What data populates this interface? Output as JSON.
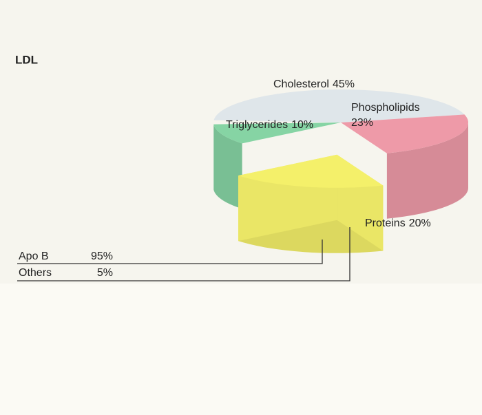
{
  "chart_data": [
    {
      "type": "pie",
      "title": "LDL",
      "categories": [
        "Cholesterol",
        "Phospholipids",
        "Proteins",
        "Triglycerides"
      ],
      "values": [
        45,
        23,
        20,
        10
      ],
      "value_labels": [
        "45%",
        "23%",
        "20%",
        "10%"
      ],
      "colors": [
        "#dfe6ea",
        "#ee9aa8",
        "#f4f06a",
        "#86d4a4"
      ],
      "exploded": "Proteins"
    },
    {
      "type": "table",
      "rows": [
        [
          "Apo B",
          "95%"
        ],
        [
          "Others",
          "5%"
        ]
      ]
    }
  ]
}
